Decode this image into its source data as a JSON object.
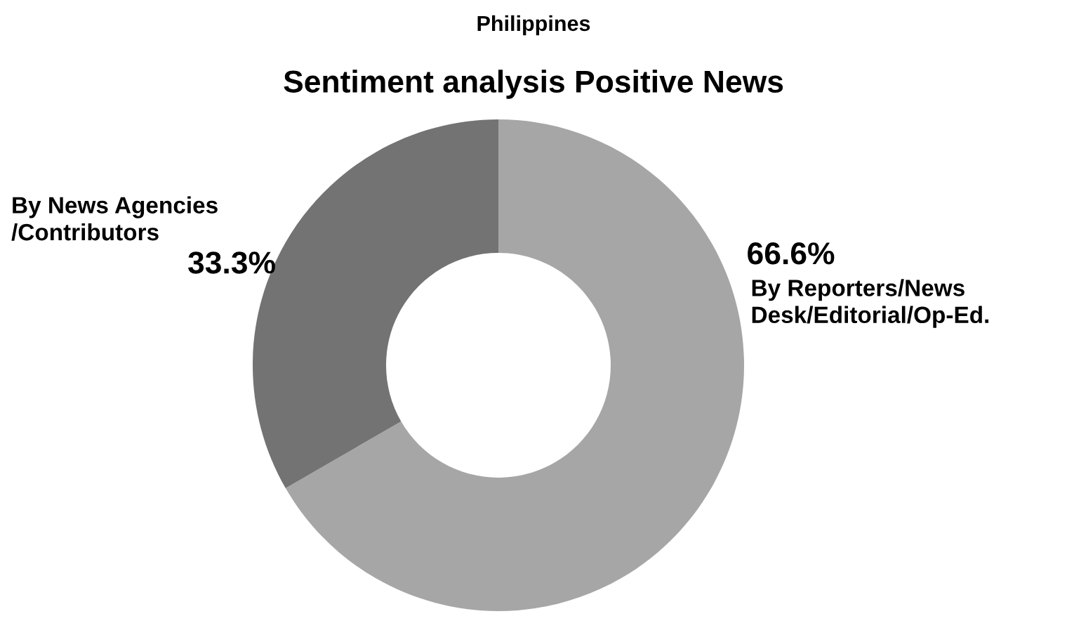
{
  "chart_data": {
    "type": "donut",
    "title": "Philippines",
    "subtitle": "Sentiment analysis Positive News",
    "categories": [
      "By Reporters/News\nDesk/Editorial/Op-Ed.",
      "By News Agencies\n/Contributors"
    ],
    "values": [
      66.6,
      33.3
    ],
    "colors": [
      "#a6a6a6",
      "#737373"
    ],
    "value_labels": [
      "66.6%",
      "33.3%"
    ],
    "legend": false
  }
}
